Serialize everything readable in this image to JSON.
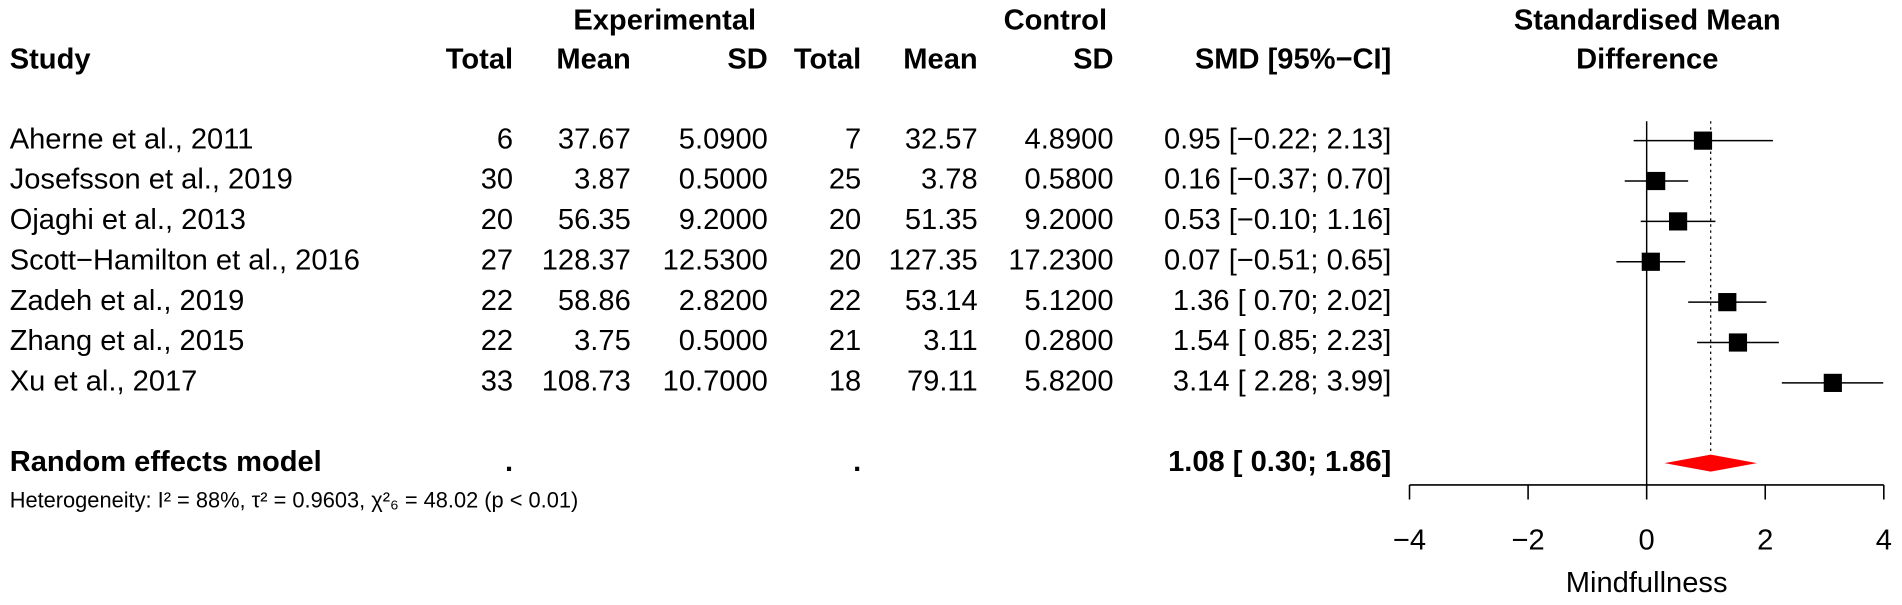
{
  "chart_data": {
    "type": "forest",
    "group_headers": [
      "Experimental",
      "Control"
    ],
    "columns": [
      "Study",
      "Total",
      "Mean",
      "SD",
      "Total",
      "Mean",
      "SD",
      "SMD [95%−CI]"
    ],
    "plot_title": [
      "Standardised Mean",
      "Difference"
    ],
    "rows": [
      [
        "Aherne et al., 2011",
        "6",
        "37.67",
        "5.0900",
        "7",
        "32.57",
        "4.8900"
      ],
      [
        "Josefsson et al., 2019",
        "30",
        "3.87",
        "0.5000",
        "25",
        "3.78",
        "0.5800"
      ],
      [
        "Ojaghi et al., 2013",
        "20",
        "56.35",
        "9.2000",
        "20",
        "51.35",
        "9.2000"
      ],
      [
        "Scott−Hamilton et al., 2016",
        "27",
        "128.37",
        "12.5300",
        "20",
        "127.35",
        "17.2300"
      ],
      [
        "Zadeh et al., 2019",
        "22",
        "58.86",
        "2.8200",
        "22",
        "53.14",
        "5.1200"
      ],
      [
        "Zhang et al., 2015",
        "22",
        "3.75",
        "0.5000",
        "21",
        "3.11",
        "0.2800"
      ],
      [
        "Xu et al., 2017",
        "33",
        "108.73",
        "10.7000",
        "18",
        "79.11",
        "5.8200"
      ]
    ],
    "values": [
      0.95,
      0.16,
      0.53,
      0.07,
      1.36,
      1.54,
      3.14
    ],
    "lower": [
      -0.22,
      -0.37,
      -0.1,
      -0.51,
      0.7,
      0.85,
      2.28
    ],
    "upper": [
      2.13,
      0.7,
      1.16,
      0.65,
      2.02,
      2.23,
      3.99
    ],
    "value_labels": [
      "0.95 [−0.22; 2.13]",
      "0.16 [−0.37; 0.70]",
      "0.53 [−0.10; 1.16]",
      "0.07 [−0.51; 0.65]",
      "1.36 [ 0.70; 2.02]",
      "1.54 [ 0.85; 2.23]",
      "3.14 [ 2.28; 3.99]"
    ],
    "pooled": {
      "name": "Random effects model",
      "experimental_total": ".",
      "control_total": ".",
      "value": 1.08,
      "lower": 0.3,
      "upper": 1.86,
      "value_label": "1.08 [ 0.30; 1.86]",
      "color": "#ff0000"
    },
    "heterogeneity": "Heterogeneity: I² = 88%, τ² = 0.9603, χ²₆ = 48.02 (p < 0.01)",
    "color": "#000000",
    "xlabel": "Mindfullness",
    "xlim": [
      -4,
      4
    ],
    "xticks": [
      {
        "value": -4,
        "label": "−4"
      },
      {
        "value": -2,
        "label": "−2"
      },
      0,
      2,
      4
    ]
  }
}
